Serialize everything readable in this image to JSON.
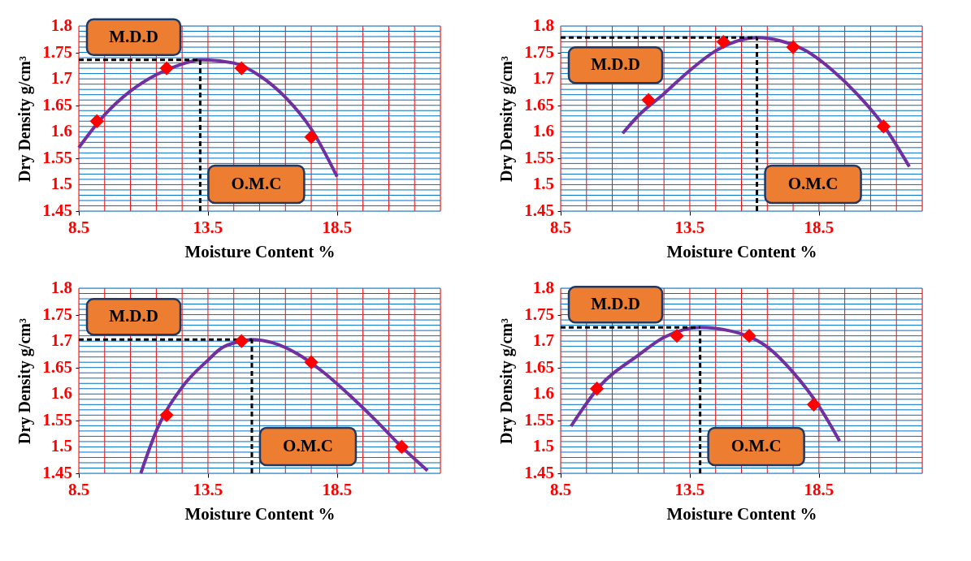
{
  "chart_data": [
    {
      "type": "line",
      "xlabel": "Moisture Content %",
      "ylabel": "Dry Density g/cm³",
      "xlim": [
        8.5,
        22.5
      ],
      "ylim": [
        1.45,
        1.8
      ],
      "grid": true,
      "xticks": [
        8.5,
        {
          "value": 9.5,
          "label": null
        },
        {
          "value": 10.5,
          "label": null
        },
        {
          "value": 11.5,
          "label": null
        },
        {
          "value": 12.5,
          "label": null
        },
        13.5,
        {
          "value": 14.5,
          "label": null
        },
        {
          "value": 15.5,
          "label": null
        },
        {
          "value": 16.5,
          "label": null
        },
        {
          "value": 17.5,
          "label": null
        },
        18.5,
        {
          "value": 19.5,
          "label": null
        },
        {
          "value": 20.5,
          "label": null
        },
        {
          "value": 21.5,
          "label": null
        },
        {
          "value": 22.5,
          "label": null
        }
      ],
      "yticks": [
        1.45,
        {
          "value": 1.46,
          "label": null
        },
        {
          "value": 1.47,
          "label": null
        },
        {
          "value": 1.48,
          "label": null
        },
        {
          "value": 1.49,
          "label": null
        },
        1.5,
        {
          "value": 1.51,
          "label": null
        },
        {
          "value": 1.52,
          "label": null
        },
        {
          "value": 1.53,
          "label": null
        },
        {
          "value": 1.54,
          "label": null
        },
        1.55,
        {
          "value": 1.56,
          "label": null
        },
        {
          "value": 1.57,
          "label": null
        },
        {
          "value": 1.58,
          "label": null
        },
        {
          "value": 1.59,
          "label": null
        },
        1.6,
        {
          "value": 1.61,
          "label": null
        },
        {
          "value": 1.62,
          "label": null
        },
        {
          "value": 1.63,
          "label": null
        },
        {
          "value": 1.64,
          "label": null
        },
        1.65,
        {
          "value": 1.66,
          "label": null
        },
        {
          "value": 1.67,
          "label": null
        },
        {
          "value": 1.68,
          "label": null
        },
        {
          "value": 1.69,
          "label": null
        },
        1.7,
        {
          "value": 1.71,
          "label": null
        },
        {
          "value": 1.72,
          "label": null
        },
        {
          "value": 1.73,
          "label": null
        },
        {
          "value": 1.74,
          "label": null
        },
        1.75,
        {
          "value": 1.76,
          "label": null
        },
        {
          "value": 1.77,
          "label": null
        },
        {
          "value": 1.78,
          "label": null
        },
        {
          "value": 1.79,
          "label": null
        },
        1.8
      ],
      "series": [
        {
          "type": "scatter",
          "color": "#ff0000",
          "marker": "diamond",
          "x": [
            9.2,
            11.9,
            14.8,
            17.5
          ],
          "values": [
            1.62,
            1.72,
            1.72,
            1.59
          ]
        },
        {
          "color": "#7030a0",
          "marker": "none",
          "x": [
            8.5,
            9.5,
            10.5,
            11.5,
            12.5,
            13.2,
            14.5,
            15.5,
            16.5,
            17.5,
            18.5
          ],
          "values": [
            1.57,
            1.632,
            1.677,
            1.708,
            1.728,
            1.736,
            1.73,
            1.706,
            1.665,
            1.605,
            1.515
          ]
        }
      ],
      "ref_lines": [
        {
          "axis": "y",
          "value": 1.736,
          "label": "M.D.D",
          "line_style": "dashed",
          "color": "#000000"
        },
        {
          "axis": "x",
          "value": 13.2,
          "label": "O.M.C",
          "line_style": "dashed",
          "color": "#000000"
        }
      ]
    },
    {
      "type": "line",
      "xlabel": "Moisture Content %",
      "ylabel": "Dry Density g/cm³",
      "xlim": [
        8.5,
        22.5
      ],
      "ylim": [
        1.45,
        1.8
      ],
      "grid": true,
      "xticks": [
        8.5,
        {
          "value": 9.5,
          "label": null
        },
        {
          "value": 10.5,
          "label": null
        },
        {
          "value": 11.5,
          "label": null
        },
        {
          "value": 12.5,
          "label": null
        },
        13.5,
        {
          "value": 14.5,
          "label": null
        },
        {
          "value": 15.5,
          "label": null
        },
        {
          "value": 16.5,
          "label": null
        },
        {
          "value": 17.5,
          "label": null
        },
        18.5,
        {
          "value": 19.5,
          "label": null
        },
        {
          "value": 20.5,
          "label": null
        },
        {
          "value": 21.5,
          "label": null
        },
        {
          "value": 22.5,
          "label": null
        }
      ],
      "yticks": [
        1.45,
        {
          "value": 1.46,
          "label": null
        },
        {
          "value": 1.47,
          "label": null
        },
        {
          "value": 1.48,
          "label": null
        },
        {
          "value": 1.49,
          "label": null
        },
        1.5,
        {
          "value": 1.51,
          "label": null
        },
        {
          "value": 1.52,
          "label": null
        },
        {
          "value": 1.53,
          "label": null
        },
        {
          "value": 1.54,
          "label": null
        },
        1.55,
        {
          "value": 1.56,
          "label": null
        },
        {
          "value": 1.57,
          "label": null
        },
        {
          "value": 1.58,
          "label": null
        },
        {
          "value": 1.59,
          "label": null
        },
        1.6,
        {
          "value": 1.61,
          "label": null
        },
        {
          "value": 1.62,
          "label": null
        },
        {
          "value": 1.63,
          "label": null
        },
        {
          "value": 1.64,
          "label": null
        },
        1.65,
        {
          "value": 1.66,
          "label": null
        },
        {
          "value": 1.67,
          "label": null
        },
        {
          "value": 1.68,
          "label": null
        },
        {
          "value": 1.69,
          "label": null
        },
        1.7,
        {
          "value": 1.71,
          "label": null
        },
        {
          "value": 1.72,
          "label": null
        },
        {
          "value": 1.73,
          "label": null
        },
        {
          "value": 1.74,
          "label": null
        },
        1.75,
        {
          "value": 1.76,
          "label": null
        },
        {
          "value": 1.77,
          "label": null
        },
        {
          "value": 1.78,
          "label": null
        },
        {
          "value": 1.79,
          "label": null
        },
        1.8
      ],
      "series": [
        {
          "type": "scatter",
          "color": "#ff0000",
          "marker": "diamond",
          "x": [
            11.9,
            14.8,
            17.5,
            21.0
          ],
          "values": [
            1.66,
            1.77,
            1.76,
            1.61
          ]
        },
        {
          "color": "#7030a0",
          "marker": "none",
          "x": [
            10.9,
            11.5,
            12.5,
            13.5,
            14.5,
            15.5,
            16.1,
            17.0,
            18.0,
            19.0,
            20.0,
            21.0,
            22.0
          ],
          "values": [
            1.597,
            1.63,
            1.672,
            1.716,
            1.753,
            1.774,
            1.778,
            1.772,
            1.753,
            1.717,
            1.67,
            1.612,
            1.534
          ]
        }
      ],
      "ref_lines": [
        {
          "axis": "y",
          "value": 1.778,
          "label": "M.D.D",
          "line_style": "dashed",
          "color": "#000000"
        },
        {
          "axis": "x",
          "value": 16.1,
          "label": "O.M.C",
          "line_style": "dashed",
          "color": "#000000"
        }
      ]
    },
    {
      "type": "line",
      "xlabel": "Moisture Content %",
      "ylabel": "Dry Density g/cm³",
      "xlim": [
        8.5,
        22.5
      ],
      "ylim": [
        1.45,
        1.8
      ],
      "grid": true,
      "xticks": [
        8.5,
        {
          "value": 9.5,
          "label": null
        },
        {
          "value": 10.5,
          "label": null
        },
        {
          "value": 11.5,
          "label": null
        },
        {
          "value": 12.5,
          "label": null
        },
        13.5,
        {
          "value": 14.5,
          "label": null
        },
        {
          "value": 15.5,
          "label": null
        },
        {
          "value": 16.5,
          "label": null
        },
        {
          "value": 17.5,
          "label": null
        },
        18.5,
        {
          "value": 19.5,
          "label": null
        },
        {
          "value": 20.5,
          "label": null
        },
        {
          "value": 21.5,
          "label": null
        },
        {
          "value": 22.5,
          "label": null
        }
      ],
      "yticks": [
        1.45,
        {
          "value": 1.46,
          "label": null
        },
        {
          "value": 1.47,
          "label": null
        },
        {
          "value": 1.48,
          "label": null
        },
        {
          "value": 1.49,
          "label": null
        },
        1.5,
        {
          "value": 1.51,
          "label": null
        },
        {
          "value": 1.52,
          "label": null
        },
        {
          "value": 1.53,
          "label": null
        },
        {
          "value": 1.54,
          "label": null
        },
        1.55,
        {
          "value": 1.56,
          "label": null
        },
        {
          "value": 1.57,
          "label": null
        },
        {
          "value": 1.58,
          "label": null
        },
        {
          "value": 1.59,
          "label": null
        },
        1.6,
        {
          "value": 1.61,
          "label": null
        },
        {
          "value": 1.62,
          "label": null
        },
        {
          "value": 1.63,
          "label": null
        },
        {
          "value": 1.64,
          "label": null
        },
        1.65,
        {
          "value": 1.66,
          "label": null
        },
        {
          "value": 1.67,
          "label": null
        },
        {
          "value": 1.68,
          "label": null
        },
        {
          "value": 1.69,
          "label": null
        },
        1.7,
        {
          "value": 1.71,
          "label": null
        },
        {
          "value": 1.72,
          "label": null
        },
        {
          "value": 1.73,
          "label": null
        },
        {
          "value": 1.74,
          "label": null
        },
        1.75,
        {
          "value": 1.76,
          "label": null
        },
        {
          "value": 1.77,
          "label": null
        },
        {
          "value": 1.78,
          "label": null
        },
        {
          "value": 1.79,
          "label": null
        },
        1.8
      ],
      "series": [
        {
          "type": "scatter",
          "color": "#ff0000",
          "marker": "diamond",
          "x": [
            11.9,
            14.8,
            17.5,
            21.0
          ],
          "values": [
            1.56,
            1.7,
            1.66,
            1.5
          ]
        },
        {
          "color": "#7030a0",
          "marker": "none",
          "x": [
            10.9,
            11.5,
            12.5,
            13.5,
            14.0,
            14.8,
            15.2,
            16.0,
            17.0,
            18.0,
            19.0,
            20.0,
            21.0,
            22.0
          ],
          "values": [
            1.45,
            1.53,
            1.613,
            1.664,
            1.686,
            1.7,
            1.703,
            1.697,
            1.675,
            1.64,
            1.597,
            1.55,
            1.5,
            1.455
          ]
        }
      ],
      "ref_lines": [
        {
          "axis": "y",
          "value": 1.703,
          "label": "M.D.D",
          "line_style": "dashed",
          "color": "#000000"
        },
        {
          "axis": "x",
          "value": 15.2,
          "label": "O.M.C",
          "line_style": "dashed",
          "color": "#000000"
        }
      ]
    },
    {
      "type": "line",
      "xlabel": "Moisture Content %",
      "ylabel": "Dry Density g/cm³",
      "xlim": [
        8.5,
        22.5
      ],
      "ylim": [
        1.45,
        1.8
      ],
      "grid": true,
      "xticks": [
        8.5,
        {
          "value": 9.5,
          "label": null
        },
        {
          "value": 10.5,
          "label": null
        },
        {
          "value": 11.5,
          "label": null
        },
        {
          "value": 12.5,
          "label": null
        },
        13.5,
        {
          "value": 14.5,
          "label": null
        },
        {
          "value": 15.5,
          "label": null
        },
        {
          "value": 16.5,
          "label": null
        },
        {
          "value": 17.5,
          "label": null
        },
        18.5,
        {
          "value": 19.5,
          "label": null
        },
        {
          "value": 20.5,
          "label": null
        },
        {
          "value": 21.5,
          "label": null
        },
        {
          "value": 22.5,
          "label": null
        }
      ],
      "yticks": [
        1.45,
        {
          "value": 1.46,
          "label": null
        },
        {
          "value": 1.47,
          "label": null
        },
        {
          "value": 1.48,
          "label": null
        },
        {
          "value": 1.49,
          "label": null
        },
        1.5,
        {
          "value": 1.51,
          "label": null
        },
        {
          "value": 1.52,
          "label": null
        },
        {
          "value": 1.53,
          "label": null
        },
        {
          "value": 1.54,
          "label": null
        },
        1.55,
        {
          "value": 1.56,
          "label": null
        },
        {
          "value": 1.57,
          "label": null
        },
        {
          "value": 1.58,
          "label": null
        },
        {
          "value": 1.59,
          "label": null
        },
        1.6,
        {
          "value": 1.61,
          "label": null
        },
        {
          "value": 1.62,
          "label": null
        },
        {
          "value": 1.63,
          "label": null
        },
        {
          "value": 1.64,
          "label": null
        },
        1.65,
        {
          "value": 1.66,
          "label": null
        },
        {
          "value": 1.67,
          "label": null
        },
        {
          "value": 1.68,
          "label": null
        },
        {
          "value": 1.69,
          "label": null
        },
        1.7,
        {
          "value": 1.71,
          "label": null
        },
        {
          "value": 1.72,
          "label": null
        },
        {
          "value": 1.73,
          "label": null
        },
        {
          "value": 1.74,
          "label": null
        },
        1.75,
        {
          "value": 1.76,
          "label": null
        },
        {
          "value": 1.77,
          "label": null
        },
        {
          "value": 1.78,
          "label": null
        },
        {
          "value": 1.79,
          "label": null
        },
        1.8
      ],
      "series": [
        {
          "type": "scatter",
          "color": "#ff0000",
          "marker": "diamond",
          "x": [
            9.9,
            13.0,
            15.8,
            18.3
          ],
          "values": [
            1.61,
            1.71,
            1.71,
            1.58
          ]
        },
        {
          "color": "#7030a0",
          "marker": "none",
          "x": [
            8.9,
            10.0,
            11.5,
            12.5,
            13.9,
            15.0,
            16.5,
            17.5,
            18.5,
            19.3
          ],
          "values": [
            1.539,
            1.614,
            1.673,
            1.707,
            1.726,
            1.72,
            1.689,
            1.641,
            1.577,
            1.511
          ]
        }
      ],
      "ref_lines": [
        {
          "axis": "y",
          "value": 1.726,
          "label": "M.D.D",
          "line_style": "dashed",
          "color": "#000000"
        },
        {
          "axis": "x",
          "value": 13.9,
          "label": "O.M.C",
          "line_style": "dashed",
          "color": "#000000"
        }
      ]
    }
  ]
}
